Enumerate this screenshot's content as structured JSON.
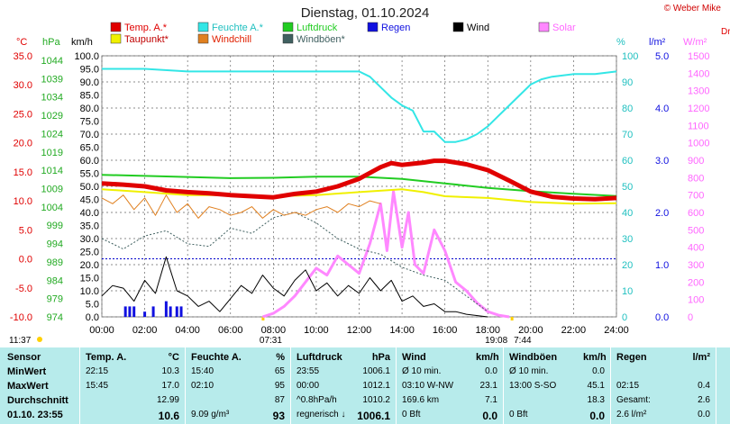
{
  "title": "Dienstag, 01.10.2024",
  "copyright": "© Weber Mike",
  "axes_units": {
    "temp": "°C",
    "pressure": "hPa",
    "speed": "km/h",
    "humidity": "%",
    "rain": "l/m²",
    "solar": "W/m²",
    "extra": "Druck"
  },
  "legend": [
    {
      "label": "Temp. A.*",
      "color": "#e00000"
    },
    {
      "label": "Feuchte A.*",
      "color": "#33e6e6"
    },
    {
      "label": "Luftdruck",
      "color": "#22cc22"
    },
    {
      "label": "Regen",
      "color": "#1010e0"
    },
    {
      "label": "Wind",
      "color": "#000000"
    },
    {
      "label": "Solar",
      "color": "#ff88ff"
    },
    {
      "label": "Taupunkt*",
      "color": "#f0f000"
    },
    {
      "label": "Windchill",
      "color": "#e08020"
    },
    {
      "label": "Windböen*",
      "color": "#406060"
    }
  ],
  "sunrise": "07:31",
  "sunset": "19:08",
  "time_left": "11:37",
  "time_right": "7:44",
  "chart_data": {
    "type": "line",
    "x_ticks": [
      "00:00",
      "02:00",
      "04:00",
      "06:00",
      "08:00",
      "10:00",
      "12:00",
      "14:00",
      "16:00",
      "18:00",
      "20:00",
      "22:00",
      "24:00"
    ],
    "temp_ticks": [
      "35.0",
      "30.0",
      "25.0",
      "20.0",
      "15.0",
      "10.0",
      "5.0",
      "0.0",
      "-5.0",
      "-10.0"
    ],
    "pressure_ticks": [
      "1044",
      "1039",
      "1034",
      "1029",
      "1024",
      "1019",
      "1014",
      "1009",
      "1004",
      "999",
      "994",
      "989",
      "984",
      "979",
      "974"
    ],
    "speed_ticks": [
      "100.0",
      "95.0",
      "90.0",
      "85.0",
      "80.0",
      "75.0",
      "70.0",
      "65.0",
      "60.0",
      "55.0",
      "50.0",
      "45.0",
      "40.0",
      "35.0",
      "30.0",
      "25.0",
      "20.0",
      "15.0",
      "10.0",
      "5.0",
      "0.0"
    ],
    "humidity_ticks": [
      "100",
      "90",
      "80",
      "70",
      "60",
      "50",
      "40",
      "30",
      "20",
      "10",
      "0"
    ],
    "rain_ticks": [
      "5.0",
      "4.0",
      "3.0",
      "2.0",
      "1.0",
      "0.0"
    ],
    "solar_ticks": [
      "1500",
      "1400",
      "1300",
      "1200",
      "1100",
      "1000",
      "900",
      "800",
      "700",
      "600",
      "500",
      "400",
      "300",
      "200",
      "100",
      "0"
    ],
    "series": [
      {
        "name": "Temp. A.*",
        "unit": "°C",
        "color": "#e00000",
        "x": [
          0,
          1,
          2,
          3,
          4,
          5,
          6,
          7,
          8,
          9,
          10,
          11,
          12,
          13,
          13.5,
          14,
          14.5,
          15,
          15.5,
          16,
          17,
          18,
          19,
          20,
          21,
          22,
          23,
          24
        ],
        "y": [
          13.0,
          12.8,
          12.5,
          11.8,
          11.5,
          11.3,
          11.0,
          10.8,
          10.6,
          11.2,
          11.6,
          12.5,
          13.8,
          15.8,
          16.5,
          16.2,
          16.4,
          16.6,
          16.9,
          16.9,
          16.3,
          15.3,
          13.5,
          11.6,
          10.7,
          10.4,
          10.3,
          10.5
        ]
      },
      {
        "name": "Taupunkt*",
        "unit": "°C",
        "color": "#f0f000",
        "x": [
          0,
          2,
          4,
          6,
          8,
          10,
          12,
          14,
          15,
          16,
          18,
          20,
          22,
          24
        ],
        "y": [
          12.0,
          11.5,
          11.0,
          11.0,
          10.8,
          11.0,
          11.5,
          12.0,
          11.5,
          10.8,
          10.5,
          9.8,
          9.5,
          9.6
        ]
      },
      {
        "name": "Luftdruck",
        "unit": "hPa",
        "color": "#22cc22",
        "x": [
          0,
          2,
          4,
          6,
          8,
          10,
          12,
          14,
          16,
          18,
          20,
          22,
          24
        ],
        "y": [
          1012.1,
          1011.8,
          1011.5,
          1011.2,
          1011.3,
          1011.6,
          1011.6,
          1011.0,
          1009.8,
          1008.6,
          1007.7,
          1007.0,
          1006.4
        ]
      },
      {
        "name": "Feuchte A.*",
        "unit": "%",
        "color": "#33e6e6",
        "x": [
          0,
          2,
          4,
          6,
          8,
          10,
          12,
          12.5,
          13,
          13.5,
          14,
          14.5,
          15,
          15.5,
          16,
          16.5,
          17,
          17.5,
          18,
          18.5,
          19,
          19.5,
          20,
          20.5,
          21,
          22,
          23,
          24
        ],
        "y": [
          95,
          95,
          94,
          94,
          94,
          94,
          94,
          92,
          88,
          84,
          81,
          79,
          71,
          71,
          67,
          67,
          68,
          70,
          73,
          77,
          81,
          85,
          89,
          91,
          92,
          93,
          93,
          94
        ]
      },
      {
        "name": "Windchill",
        "unit": "°C",
        "color": "#e08020",
        "x": [
          0,
          0.5,
          1,
          1.5,
          2,
          2.5,
          3,
          3.5,
          4,
          4.5,
          5,
          5.5,
          6,
          6.5,
          7,
          7.5,
          8,
          8.5,
          9,
          9.5,
          10,
          10.5,
          11,
          11.5,
          12,
          12.5,
          13
        ],
        "y": [
          10.5,
          9.5,
          11.0,
          8.5,
          10.5,
          7.5,
          11.0,
          8.0,
          9.5,
          7.0,
          9.0,
          8.5,
          7.5,
          8.0,
          9.0,
          7.0,
          8.5,
          7.5,
          8.0,
          7.5,
          8.5,
          9.0,
          8.0,
          9.5,
          9.0,
          10.0,
          9.5
        ]
      },
      {
        "name": "Windböen*",
        "unit": "km/h",
        "color": "#406060",
        "x": [
          0,
          1,
          2,
          3,
          4,
          5,
          6,
          7,
          8,
          9,
          10,
          11,
          12,
          13,
          14,
          15,
          16,
          17,
          18
        ],
        "y": [
          30,
          26,
          31,
          33,
          28,
          27,
          34,
          32,
          38,
          40,
          36,
          30,
          26,
          24,
          19,
          16,
          14,
          8,
          2
        ]
      },
      {
        "name": "Wind",
        "unit": "km/h",
        "color": "#000000",
        "x": [
          0,
          0.5,
          1,
          1.5,
          2,
          2.5,
          3,
          3.5,
          4,
          4.5,
          5,
          5.5,
          6,
          6.5,
          7,
          7.5,
          8,
          8.5,
          9,
          9.5,
          10,
          10.5,
          11,
          11.5,
          12,
          12.5,
          13,
          13.5,
          14,
          14.5,
          15,
          15.5,
          16,
          16.5,
          17,
          18
        ],
        "y": [
          8,
          12,
          11,
          6,
          14,
          9,
          23,
          10,
          8,
          4,
          6,
          2,
          7,
          12,
          9,
          16,
          11,
          8,
          14,
          18,
          10,
          13,
          8,
          12,
          9,
          15,
          10,
          14,
          6,
          8,
          4,
          5,
          2,
          2,
          1,
          0
        ]
      },
      {
        "name": "Solar",
        "unit": "W/m²",
        "color": "#ff88ff",
        "x": [
          7.5,
          8,
          8.5,
          9,
          9.5,
          10,
          10.5,
          11,
          11.5,
          12,
          12.5,
          13,
          13.3,
          13.6,
          14,
          14.3,
          14.6,
          15,
          15.5,
          16,
          16.5,
          17,
          17.5,
          18,
          18.5,
          19
        ],
        "y": [
          0,
          20,
          60,
          120,
          200,
          280,
          240,
          350,
          300,
          250,
          420,
          650,
          380,
          720,
          400,
          600,
          300,
          250,
          500,
          380,
          200,
          150,
          80,
          30,
          10,
          0
        ]
      },
      {
        "name": "Regen",
        "unit": "l/m²",
        "color": "#1010e0",
        "x": [
          1.1,
          1.3,
          1.5,
          2.0,
          2.4,
          3.0,
          3.2,
          3.5,
          3.7
        ],
        "y": [
          0.2,
          0.2,
          0.2,
          0.1,
          0.2,
          0.3,
          0.2,
          0.2,
          0.2
        ]
      }
    ]
  },
  "stats": {
    "sensor": {
      "header": "Sensor",
      "rows": [
        "MinWert",
        "MaxWert",
        "Durchschnitt",
        "01.10. 23:55"
      ]
    },
    "temp": {
      "header": "Temp. A.",
      "unit": "°C",
      "rows": [
        [
          "22:15",
          "10.3"
        ],
        [
          "15:45",
          "17.0"
        ],
        [
          "",
          "12.99"
        ],
        [
          "",
          "10.6"
        ]
      ]
    },
    "humidity": {
      "header": "Feuchte A.",
      "unit": "%",
      "rows": [
        [
          "15:40",
          "65"
        ],
        [
          "02:10",
          "95"
        ],
        [
          "",
          "87"
        ],
        [
          "9.09 g/m³",
          "93"
        ]
      ]
    },
    "pressure": {
      "header": "Luftdruck",
      "unit": "hPa",
      "rows": [
        [
          "23:55",
          "1006.1"
        ],
        [
          "00:00",
          "1012.1"
        ],
        [
          "^0.8hPa/h",
          "1010.2"
        ],
        [
          "regnerisch ↓",
          "1006.1"
        ]
      ]
    },
    "wind": {
      "header": "Wind",
      "unit": "km/h",
      "rows": [
        [
          "Ø 10 min.",
          "0.0"
        ],
        [
          "03:10   W-NW",
          "23.1"
        ],
        [
          "169.6 km",
          "7.1"
        ],
        [
          "0 Bft",
          "0.0"
        ]
      ]
    },
    "gusts": {
      "header": "Windböen",
      "unit": "km/h",
      "rows": [
        [
          "Ø 10 min.",
          "0.0"
        ],
        [
          "13:00   S-SO",
          "45.1"
        ],
        [
          "",
          "18.3"
        ],
        [
          "0 Bft",
          "0.0"
        ]
      ]
    },
    "rain": {
      "header": "Regen",
      "unit": "l/m²",
      "rows": [
        [
          "",
          ""
        ],
        [
          "02:15",
          "0.4"
        ],
        [
          "Gesamt:",
          "2.6"
        ],
        [
          "2.6 l/m²",
          "0.0"
        ]
      ]
    }
  }
}
